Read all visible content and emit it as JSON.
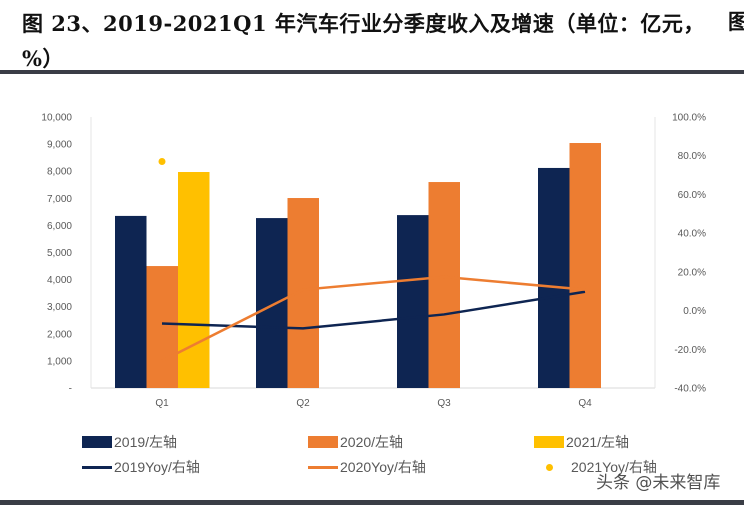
{
  "title": "图 23、2019-2021Q1 年汽车行业分季度收入及增速（单位：亿元，%）",
  "title_cut": "图",
  "watermark": "头条 @未来智库",
  "chart_data": {
    "type": "bar+line",
    "categories": [
      "Q1",
      "Q2",
      "Q3",
      "Q4"
    ],
    "left_axis": {
      "ylim": [
        0,
        10000
      ],
      "ticks": [
        "-",
        "1,000",
        "2,000",
        "3,000",
        "4,000",
        "5,000",
        "6,000",
        "7,000",
        "8,000",
        "9,000",
        "10,000"
      ]
    },
    "right_axis": {
      "ylim": [
        -40,
        100
      ],
      "ticks": [
        "-40.0%",
        "-20.0%",
        "0.0%",
        "20.0%",
        "40.0%",
        "60.0%",
        "80.0%",
        "100.0%"
      ]
    },
    "bar_series": [
      {
        "name": "2019/左轴",
        "color": "#0e2552",
        "values": [
          6350,
          6270,
          6380,
          8120
        ]
      },
      {
        "name": "2020/左轴",
        "color": "#ed7d31",
        "values": [
          4500,
          7010,
          7600,
          9040
        ]
      },
      {
        "name": "2021/左轴",
        "color": "#ffc000",
        "values": [
          7970,
          null,
          null,
          null
        ]
      }
    ],
    "line_series": [
      {
        "name": "2019Yoy/右轴",
        "color": "#0e2552",
        "values": [
          -6.7,
          -9.2,
          -2.0,
          9.7
        ]
      },
      {
        "name": "2020Yoy/右轴",
        "color": "#ed7d31",
        "values": [
          -26,
          10.8,
          17.4,
          10.8
        ]
      },
      {
        "name": "2021Yoy/右轴",
        "color": "#ffc000",
        "marker": "dot",
        "values": [
          77,
          null,
          null,
          null
        ]
      }
    ],
    "grid": false,
    "legend": "bottom"
  }
}
